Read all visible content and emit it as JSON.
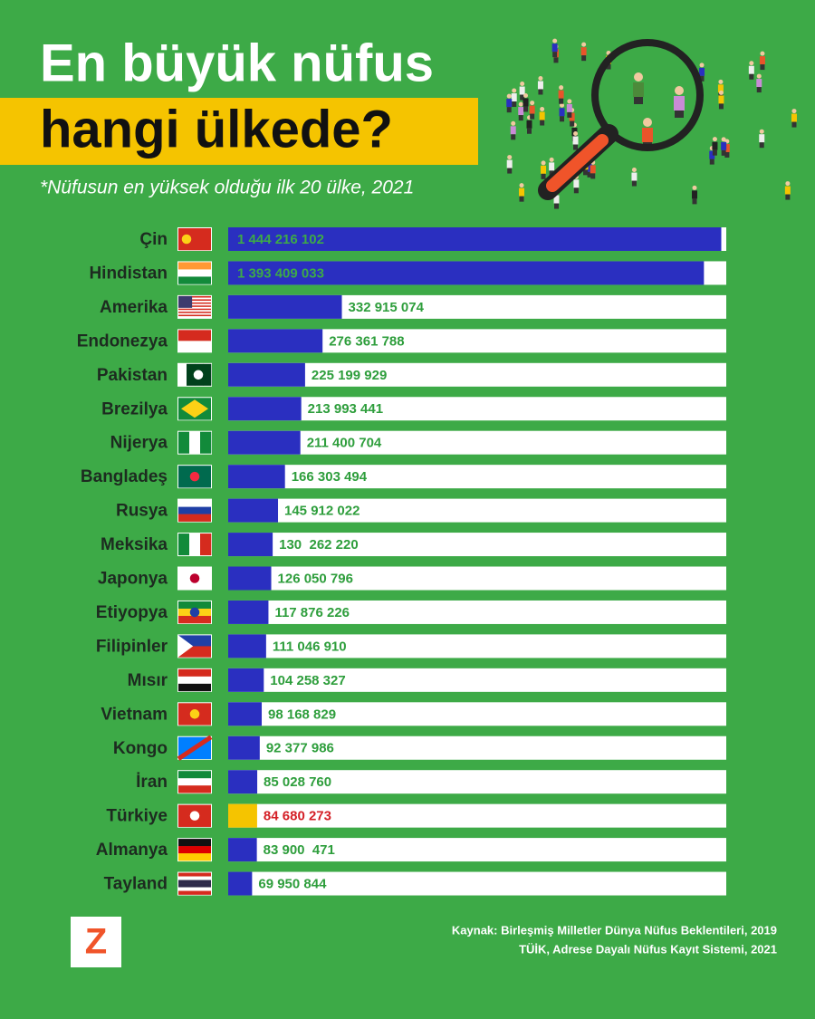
{
  "title_line1": "En büyük nüfus",
  "title_line2": "hangi ülkede?",
  "subtitle": "*Nüfusun en yüksek olduğu ilk 20 ülke, 2021",
  "logo": "Z",
  "source_line1": "Kaynak: Birleşmiş Milletler Dünya Nüfus Beklentileri, 2019",
  "source_line2": "TÜİK, Adrese Dayalı Nüfus Kayıt Sistemi, 2021",
  "chart_data": {
    "type": "bar",
    "orientation": "horizontal",
    "categories": [
      "Çin",
      "Hindistan",
      "Amerika",
      "Endonezya",
      "Pakistan",
      "Brezilya",
      "Nijerya",
      "Bangladeş",
      "Rusya",
      "Meksika",
      "Japonya",
      "Etiyopya",
      "Filipinler",
      "Mısır",
      "Vietnam",
      "Kongo",
      "İran",
      "Türkiye",
      "Almanya",
      "Tayland"
    ],
    "values": [
      1444216102,
      1393409033,
      332915074,
      276361788,
      225199929,
      213993441,
      211400704,
      166303494,
      145912022,
      130262220,
      126050796,
      117876226,
      111046910,
      104258327,
      98168829,
      92377986,
      85028760,
      84680273,
      83900471,
      69950844
    ],
    "value_labels": [
      "1 444 216 102",
      "1 393 409 033",
      "332 915 074",
      "276 361 788",
      "225 199 929",
      "213 993 441",
      "211 400 704",
      "166 303 494",
      "145 912 022",
      "130  262 220",
      "126 050 796",
      "117 876 226",
      "111 046 910",
      "104 258 327",
      "98 168 829",
      "92 377 986",
      "85 028 760",
      "84 680 273",
      "83 900  471",
      "69 950 844"
    ],
    "colors": [
      "#2a2fc0",
      "#2a2fc0",
      "#2a2fc0",
      "#2a2fc0",
      "#2a2fc0",
      "#2a2fc0",
      "#2a2fc0",
      "#2a2fc0",
      "#2a2fc0",
      "#2a2fc0",
      "#2a2fc0",
      "#2a2fc0",
      "#2a2fc0",
      "#2a2fc0",
      "#2a2fc0",
      "#2a2fc0",
      "#2a2fc0",
      "#f5c400",
      "#2a2fc0",
      "#2a2fc0"
    ],
    "label_colors": [
      "#3daa47",
      "#3daa47",
      "#2e9e3c",
      "#2e9e3c",
      "#2e9e3c",
      "#2e9e3c",
      "#2e9e3c",
      "#2e9e3c",
      "#2e9e3c",
      "#2e9e3c",
      "#2e9e3c",
      "#2e9e3c",
      "#2e9e3c",
      "#2e9e3c",
      "#2e9e3c",
      "#2e9e3c",
      "#2e9e3c",
      "#d41f26",
      "#2e9e3c",
      "#2e9e3c"
    ]
  }
}
